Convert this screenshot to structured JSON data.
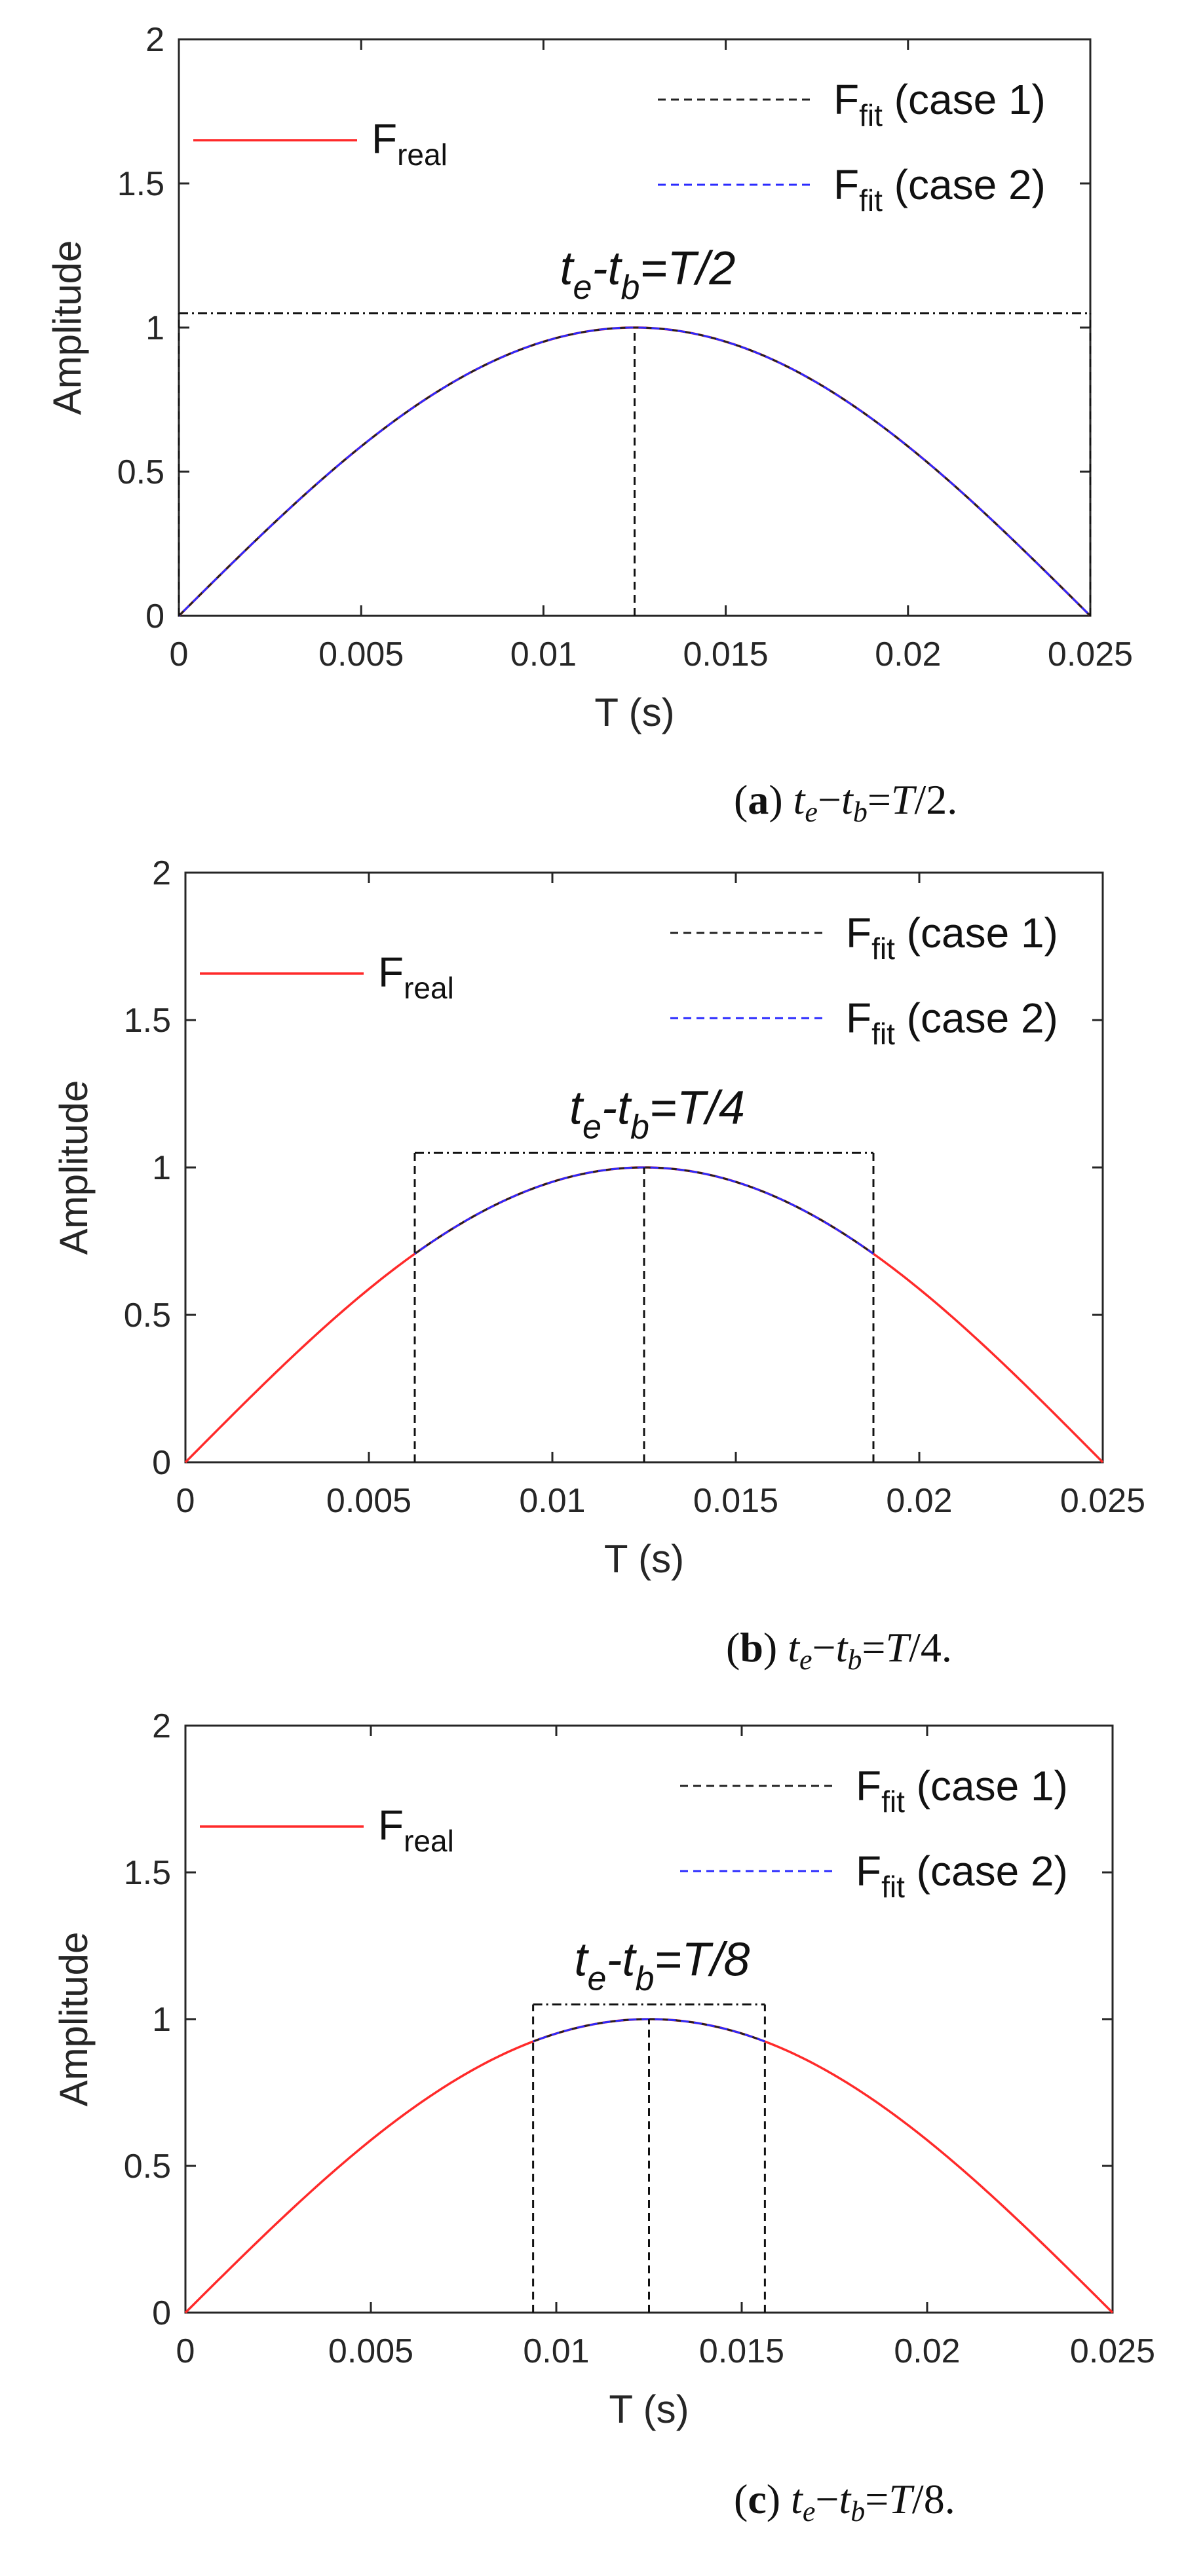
{
  "colors": {
    "real": "#ff2a2a",
    "fit_case1": "#222222",
    "fit_case2": "#2b2bff",
    "axis": "#262626"
  },
  "legend": {
    "real_main": "F",
    "real_sub": "real",
    "fit_main": "F",
    "fit_sub": "fit",
    "case1": "(case 1)",
    "case2": "(case 2)"
  },
  "chart_data": [
    {
      "id": "a",
      "type": "line",
      "title": "",
      "xlabel": "T (s)",
      "ylabel": "Amplitude",
      "xlim": [
        0,
        0.025
      ],
      "ylim": [
        0,
        2
      ],
      "xticks": [
        0,
        0.005,
        0.01,
        0.015,
        0.02,
        0.025
      ],
      "xtick_labels": [
        "0",
        "0.005",
        "0.01",
        "0.015",
        "0.02",
        "0.025"
      ],
      "yticks": [
        0,
        0.5,
        1,
        1.5,
        2
      ],
      "ytick_labels": [
        "0",
        "0.5",
        "1",
        "1.5",
        "2"
      ],
      "series": [
        {
          "name": "F_real",
          "function": "sin(pi*t/0.025)",
          "range": [
            0,
            0.025
          ]
        },
        {
          "name": "F_fit (case 1)",
          "function": "sin(pi*t/0.025)",
          "range": [
            0,
            0.025
          ]
        },
        {
          "name": "F_fit (case 2)",
          "function": "sin(pi*t/0.025)",
          "range": [
            0,
            0.025
          ]
        }
      ],
      "window": {
        "tb": 0,
        "te": 0.025,
        "peak_t": 0.0125,
        "bracket_y": 1.05
      },
      "annotation": {
        "t": "t",
        "e": "e",
        "dash": "-",
        "b": "b",
        "rhs": "=T/2"
      },
      "caption": {
        "letter": "a",
        "t1": "t",
        "s1": "e",
        "minus": "−",
        "t2": "t",
        "s2": "b",
        "eq": "=",
        "T": "T",
        "rest": "/2."
      }
    },
    {
      "id": "b",
      "type": "line",
      "title": "",
      "xlabel": "T (s)",
      "ylabel": "Amplitude",
      "xlim": [
        0,
        0.025
      ],
      "ylim": [
        0,
        2
      ],
      "xticks": [
        0,
        0.005,
        0.01,
        0.015,
        0.02,
        0.025
      ],
      "xtick_labels": [
        "0",
        "0.005",
        "0.01",
        "0.015",
        "0.02",
        "0.025"
      ],
      "yticks": [
        0,
        0.5,
        1,
        1.5,
        2
      ],
      "ytick_labels": [
        "0",
        "0.5",
        "1",
        "1.5",
        "2"
      ],
      "series": [
        {
          "name": "F_real",
          "function": "sin(pi*t/0.025)",
          "range": [
            0,
            0.025
          ]
        },
        {
          "name": "F_fit (case 1)",
          "function": "sin(pi*t/0.025)",
          "range": [
            0.00625,
            0.01875
          ]
        },
        {
          "name": "F_fit (case 2)",
          "function": "sin(pi*t/0.025)",
          "range": [
            0.00625,
            0.01875
          ]
        }
      ],
      "window": {
        "tb": 0.00625,
        "te": 0.01875,
        "peak_t": 0.0125,
        "bracket_y": 1.05
      },
      "annotation": {
        "t": "t",
        "e": "e",
        "dash": "-",
        "b": "b",
        "rhs": "=T/4"
      },
      "caption": {
        "letter": "b",
        "t1": "t",
        "s1": "e",
        "minus": "−",
        "t2": "t",
        "s2": "b",
        "eq": "=",
        "T": "T",
        "rest": "/4."
      }
    },
    {
      "id": "c",
      "type": "line",
      "title": "",
      "xlabel": "T (s)",
      "ylabel": "Amplitude",
      "xlim": [
        0,
        0.025
      ],
      "ylim": [
        0,
        2
      ],
      "xticks": [
        0,
        0.005,
        0.01,
        0.015,
        0.02,
        0.025
      ],
      "xtick_labels": [
        "0",
        "0.005",
        "0.01",
        "0.015",
        "0.02",
        "0.025"
      ],
      "yticks": [
        0,
        0.5,
        1,
        1.5,
        2
      ],
      "ytick_labels": [
        "0",
        "0.5",
        "1",
        "1.5",
        "2"
      ],
      "series": [
        {
          "name": "F_real",
          "function": "sin(pi*t/0.025)",
          "range": [
            0,
            0.025
          ]
        },
        {
          "name": "F_fit (case 1)",
          "function": "sin(pi*t/0.025)",
          "range": [
            0.009375,
            0.015625
          ]
        },
        {
          "name": "F_fit (case 2)",
          "function": "sin(pi*t/0.025)",
          "range": [
            0.009375,
            0.015625
          ]
        }
      ],
      "window": {
        "tb": 0.009375,
        "te": 0.015625,
        "peak_t": 0.0125,
        "bracket_y": 1.05
      },
      "annotation": {
        "t": "t",
        "e": "e",
        "dash": "-",
        "b": "b",
        "rhs": "=T/8"
      },
      "caption": {
        "letter": "c",
        "t1": "t",
        "s1": "e",
        "minus": "−",
        "t2": "t",
        "s2": "b",
        "eq": "=",
        "T": "T",
        "rest": "/8."
      }
    }
  ]
}
